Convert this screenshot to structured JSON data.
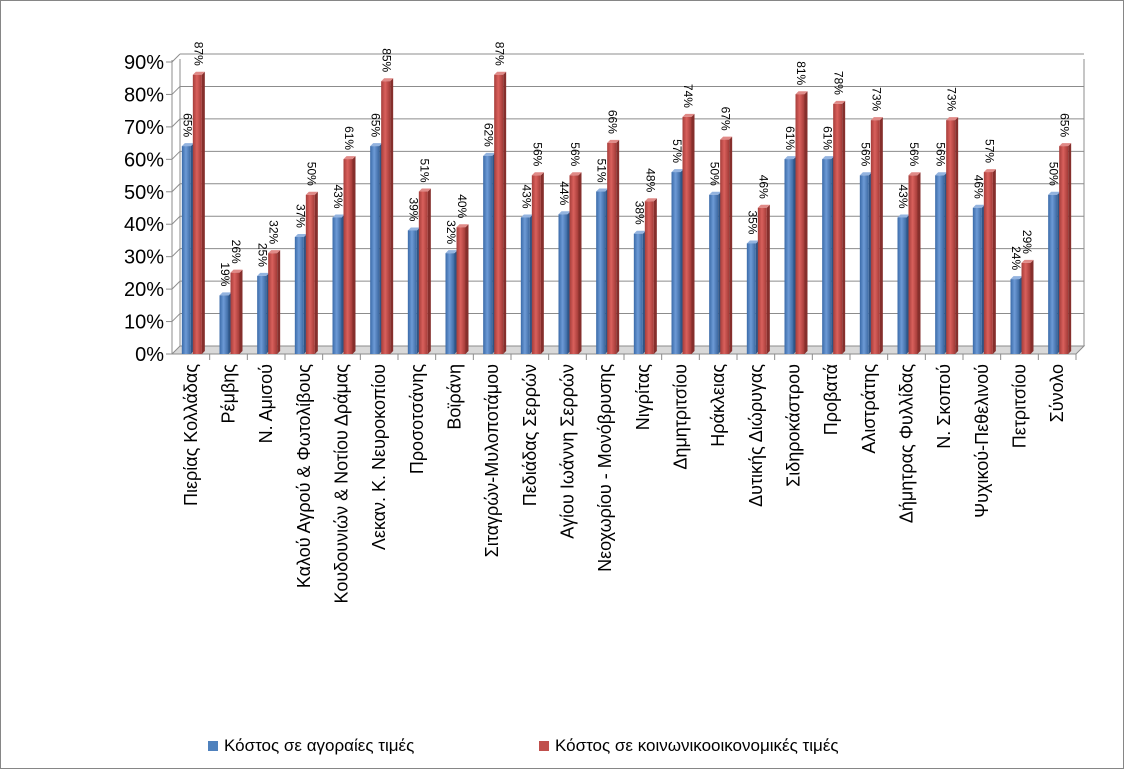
{
  "chart_data": {
    "type": "bar",
    "title": "",
    "xlabel": "",
    "ylabel": "",
    "ylim": [
      0,
      90
    ],
    "yticks": [
      "0%",
      "10%",
      "20%",
      "30%",
      "40%",
      "50%",
      "60%",
      "70%",
      "80%",
      "90%"
    ],
    "grid": true,
    "legend_position": "bottom",
    "categories": [
      "Πιερίας Κολλάδας",
      "Ρέμβης",
      "Ν. Αμισού",
      "Καλού Αγρού & Φωτολίβους",
      "Κουδουνιών & Νοτίου Δράμας",
      "Λεκαν. Κ. Νευροκοπίου",
      "Προσοτσάνης",
      "Βοϊράνη",
      "Σιταγρών-Μυλοποτάμου",
      "Πεδιάδας Σερρών",
      "Αγίου Ιωάννη Σερρών",
      "Νεοχωρίου - Μονόβρυσης",
      "Νιγρίτας",
      "Δημητριτσίου",
      "Ηράκλειας",
      "Δυτικής Διώρυγας",
      "Σιδηροκάστρου",
      "Προβατά",
      "Αλιστράτης",
      "Δήμητρας Φυλλίδας",
      "Ν. Σκοπού",
      "Ψυχικού-Πεθελινού",
      "Πετριτσίου",
      "Σύνολο"
    ],
    "series": [
      {
        "name": "Κόστος σε αγοραίες τιμές",
        "color": "#4f81bd",
        "values": [
          65,
          19,
          25,
          37,
          43,
          65,
          39,
          32,
          62,
          43,
          44,
          51,
          38,
          57,
          50,
          35,
          61,
          61,
          56,
          43,
          56,
          46,
          24,
          50
        ],
        "labels": [
          "65%",
          "19%",
          "25%",
          "37%",
          "43%",
          "65%",
          "39%",
          "32%",
          "62%",
          "43%",
          "44%",
          "51%",
          "38%",
          "57%",
          "50%",
          "35%",
          "61%",
          "61%",
          "56%",
          "43%",
          "56%",
          "46%",
          "24%",
          "50%"
        ]
      },
      {
        "name": "Κόστος σε κοινωνικοοικονομικές τιμές",
        "color": "#c0504d",
        "values": [
          87,
          26,
          32,
          50,
          61,
          85,
          51,
          40,
          87,
          56,
          56,
          66,
          48,
          74,
          67,
          46,
          81,
          78,
          73,
          56,
          73,
          57,
          29,
          65
        ],
        "labels": [
          "87%",
          "26%",
          "32%",
          "50%",
          "61%",
          "85%",
          "51%",
          "40%",
          "87%",
          "56%",
          "56%",
          "66%",
          "48%",
          "74%",
          "67%",
          "46%",
          "81%",
          "78%",
          "73%",
          "56%",
          "73%",
          "57%",
          "29%",
          "65%"
        ]
      }
    ]
  }
}
